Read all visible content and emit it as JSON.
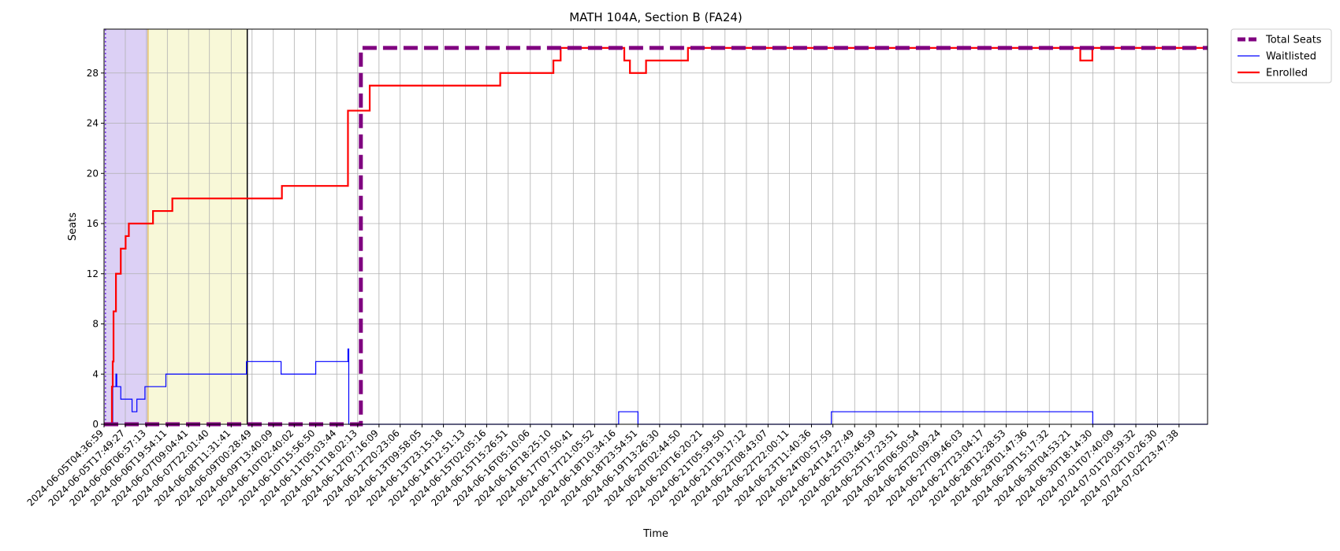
{
  "chart_data": {
    "type": "line",
    "title": "MATH 104A, Section B (FA24)",
    "xlabel": "Time",
    "ylabel": "Seats",
    "x_scale": "time",
    "x_range": [
      "2024-06-05T04:36:59",
      "2024-07-03T17:30:00"
    ],
    "ylim": [
      0,
      31.5
    ],
    "y_ticks": [
      0,
      4,
      8,
      12,
      16,
      20,
      24,
      28
    ],
    "grid": true,
    "legend_position": "outside-top-right",
    "x_ticks": [
      "2024-06-05T04:36:59",
      "2024-06-05T17:49:27",
      "2024-06-06T06:57:13",
      "2024-06-06T19:54:11",
      "2024-06-07T09:04:41",
      "2024-06-07T22:01:40",
      "2024-06-08T11:31:41",
      "2024-06-09T00:28:49",
      "2024-06-09T13:40:09",
      "2024-06-10T02:40:02",
      "2024-06-10T15:56:50",
      "2024-06-11T05:03:44",
      "2024-06-11T18:02:13",
      "2024-06-12T07:16:09",
      "2024-06-12T20:23:06",
      "2024-06-13T09:58:05",
      "2024-06-13T23:15:18",
      "2024-06-14T12:51:13",
      "2024-06-15T02:05:16",
      "2024-06-15T15:26:51",
      "2024-06-16T05:10:06",
      "2024-06-16T18:25:10",
      "2024-06-17T07:50:41",
      "2024-06-17T21:05:52",
      "2024-06-18T10:34:16",
      "2024-06-18T23:54:51",
      "2024-06-19T13:26:30",
      "2024-06-20T02:44:50",
      "2024-06-20T16:20:21",
      "2024-06-21T05:59:50",
      "2024-06-21T19:17:12",
      "2024-06-22T08:43:07",
      "2024-06-22T22:00:11",
      "2024-06-23T11:40:36",
      "2024-06-24T00:57:59",
      "2024-06-24T14:27:49",
      "2024-06-25T03:46:59",
      "2024-06-25T17:23:51",
      "2024-06-26T06:50:54",
      "2024-06-26T20:09:24",
      "2024-06-27T09:46:03",
      "2024-06-27T23:04:17",
      "2024-06-28T12:28:53",
      "2024-06-29T01:47:36",
      "2024-06-29T15:17:32",
      "2024-06-30T04:53:21",
      "2024-06-30T18:14:30",
      "2024-07-01T07:40:09",
      "2024-07-01T20:59:32",
      "2024-07-02T10:26:30",
      "2024-07-02T23:47:38"
    ],
    "series": [
      {
        "name": "Total Seats",
        "color": "#800080",
        "style": "dashed",
        "points": [
          [
            "2024-06-05T04:36:59",
            0
          ],
          [
            "2024-06-11T20:00:00",
            0
          ],
          [
            "2024-06-11T20:00:00",
            30
          ],
          [
            "2024-07-03T17:30:00",
            30
          ]
        ]
      },
      {
        "name": "Waitlisted",
        "color": "#0000ff",
        "style": "solid",
        "points": [
          [
            "2024-06-05T04:36:59",
            0
          ],
          [
            "2024-06-05T10:00:00",
            3
          ],
          [
            "2024-06-05T12:00:00",
            4
          ],
          [
            "2024-06-05T12:30:00",
            3
          ],
          [
            "2024-06-05T15:00:00",
            2
          ],
          [
            "2024-06-05T22:00:00",
            1
          ],
          [
            "2024-06-06T01:00:00",
            2
          ],
          [
            "2024-06-06T06:00:00",
            3
          ],
          [
            "2024-06-06T19:00:00",
            4
          ],
          [
            "2024-06-08T21:00:00",
            5
          ],
          [
            "2024-06-09T18:30:00",
            4
          ],
          [
            "2024-06-10T16:00:00",
            5
          ],
          [
            "2024-06-11T06:00:00",
            5
          ],
          [
            "2024-06-11T12:00:00",
            6
          ],
          [
            "2024-06-11T12:30:00",
            0
          ],
          [
            "2024-06-18T12:00:00",
            1
          ],
          [
            "2024-06-19T00:00:00",
            0
          ],
          [
            "2024-06-24T00:00:00",
            1
          ],
          [
            "2024-06-30T18:14:30",
            1
          ],
          [
            "2024-06-30T18:14:30",
            0
          ],
          [
            "2024-07-03T17:30:00",
            0
          ]
        ]
      },
      {
        "name": "Enrolled",
        "color": "#ff0000",
        "style": "solid",
        "points": [
          [
            "2024-06-05T04:36:59",
            0
          ],
          [
            "2024-06-05T09:00:00",
            0
          ],
          [
            "2024-06-05T09:30:00",
            3
          ],
          [
            "2024-06-05T10:00:00",
            5
          ],
          [
            "2024-06-05T10:30:00",
            9
          ],
          [
            "2024-06-05T12:00:00",
            12
          ],
          [
            "2024-06-05T15:00:00",
            14
          ],
          [
            "2024-06-05T18:00:00",
            15
          ],
          [
            "2024-06-05T20:00:00",
            16
          ],
          [
            "2024-06-06T11:00:00",
            17
          ],
          [
            "2024-06-06T23:00:00",
            18
          ],
          [
            "2024-06-09T19:00:00",
            19
          ],
          [
            "2024-06-11T12:00:00",
            25
          ],
          [
            "2024-06-12T01:30:00",
            27
          ],
          [
            "2024-06-15T10:30:00",
            28
          ],
          [
            "2024-06-16T19:30:00",
            29
          ],
          [
            "2024-06-17T00:00:00",
            30
          ],
          [
            "2024-06-18T15:30:00",
            29
          ],
          [
            "2024-06-18T19:00:00",
            28
          ],
          [
            "2024-06-19T05:00:00",
            29
          ],
          [
            "2024-06-20T07:00:00",
            30
          ],
          [
            "2024-06-30T10:30:00",
            29
          ],
          [
            "2024-06-30T18:00:00",
            30
          ],
          [
            "2024-07-03T17:30:00",
            30
          ]
        ]
      }
    ],
    "spans": [
      {
        "start": "2024-06-05T04:36:59",
        "end": "2024-06-06T07:55:00",
        "color": "#dcd0f5"
      },
      {
        "start": "2024-06-06T07:55:00",
        "end": "2024-06-08T21:30:00",
        "color": "#f8f8d8"
      }
    ],
    "vlines": [
      {
        "x": "2024-06-05T05:30:00",
        "color": "#7c3aed",
        "style": "dotted"
      },
      {
        "x": "2024-06-06T07:55:00",
        "color": "#e6c26b",
        "style": "solid"
      },
      {
        "x": "2024-06-08T21:30:00",
        "color": "#000000",
        "style": "solid"
      }
    ]
  }
}
